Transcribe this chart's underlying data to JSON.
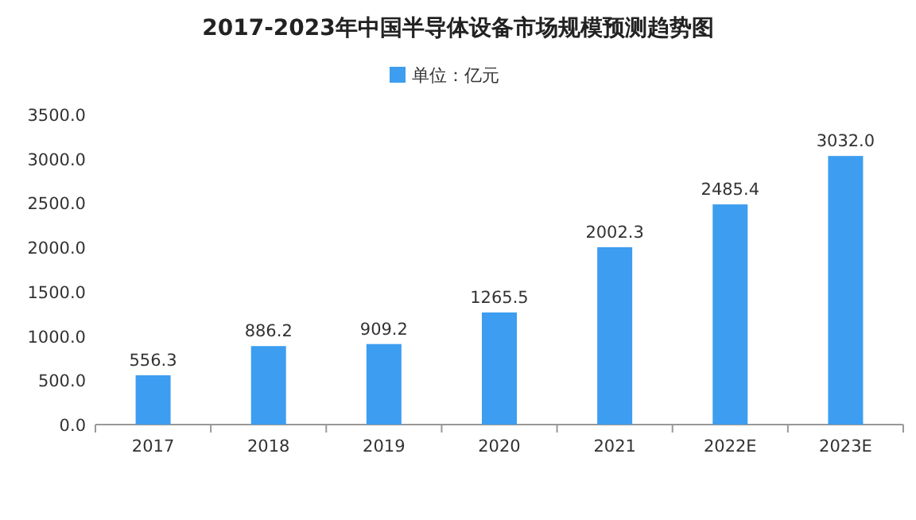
{
  "chart_data": {
    "type": "bar",
    "title": "2017-2023年中国半导体设备市场规模预测趋势图",
    "categories": [
      "2017",
      "2018",
      "2019",
      "2020",
      "2021",
      "2022E",
      "2023E"
    ],
    "series": [
      {
        "name": "单位：亿元",
        "color": "#3d9df0",
        "values": [
          556.3,
          886.2,
          909.2,
          1265.5,
          2002.3,
          2485.4,
          3032.0
        ],
        "value_labels": [
          "556.3",
          "886.2",
          "909.2",
          "1265.5",
          "2002.3",
          "2485.4",
          "3032.0"
        ]
      }
    ],
    "ylim": [
      0,
      3500
    ],
    "yticks": [
      {
        "value": 0,
        "label": "0.0"
      },
      {
        "value": 500,
        "label": "500.0"
      },
      {
        "value": 1000,
        "label": "1000.0"
      },
      {
        "value": 1500,
        "label": "1500.0"
      },
      {
        "value": 2000,
        "label": "2000.0"
      },
      {
        "value": 2500,
        "label": "2500.0"
      },
      {
        "value": 3000,
        "label": "3000.0"
      },
      {
        "value": 3500,
        "label": "3500.0"
      }
    ],
    "legend": "top",
    "grid": false
  }
}
